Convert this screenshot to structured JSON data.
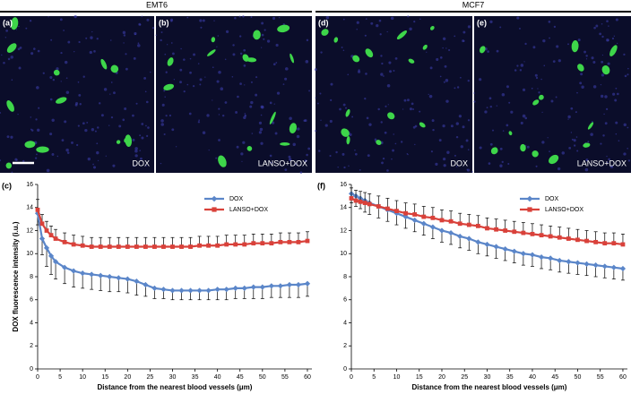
{
  "header": {
    "groups": [
      "EMT6",
      "MCF7"
    ]
  },
  "panels": [
    {
      "label": "(a)",
      "caption": "DOX"
    },
    {
      "label": "(b)",
      "caption": "LANSO+DOX"
    },
    {
      "label": "(d)",
      "caption": "DOX"
    },
    {
      "label": "(e)",
      "caption": "LANSO+DOX"
    }
  ],
  "chart_data": [
    {
      "type": "line",
      "panel_label": "(c)",
      "y_label": "DOX fluorescence intensity (i.u.)",
      "x_label": "Distance from the nearest blood vessels (μm)",
      "x": [
        0,
        1,
        2,
        3,
        4,
        6,
        8,
        10,
        12,
        14,
        16,
        18,
        20,
        22,
        24,
        26,
        28,
        30,
        32,
        34,
        36,
        38,
        40,
        42,
        44,
        46,
        48,
        50,
        52,
        54,
        56,
        58,
        60
      ],
      "xlim": [
        0,
        61
      ],
      "xticks": [
        0,
        5,
        10,
        15,
        20,
        25,
        30,
        35,
        40,
        45,
        50,
        55,
        60
      ],
      "ylim": [
        0,
        16
      ],
      "yticks": [
        0,
        2,
        4,
        6,
        8,
        10,
        12,
        14,
        16
      ],
      "legend": "upper right",
      "series": [
        {
          "name": "DOX",
          "color": "#5b86c9",
          "marker": "diamond",
          "error_direction": "down",
          "values": [
            13.5,
            11.3,
            10.5,
            9.8,
            9.3,
            8.8,
            8.5,
            8.3,
            8.2,
            8.1,
            8.0,
            7.9,
            7.8,
            7.6,
            7.3,
            7.0,
            6.9,
            6.8,
            6.8,
            6.8,
            6.8,
            6.8,
            6.9,
            6.9,
            7.0,
            7.0,
            7.1,
            7.1,
            7.2,
            7.2,
            7.3,
            7.3,
            7.4
          ],
          "errors": [
            1.0,
            1.4,
            1.6,
            1.6,
            1.5,
            1.4,
            1.4,
            1.3,
            1.3,
            1.3,
            1.3,
            1.2,
            1.2,
            1.2,
            1.0,
            0.9,
            0.8,
            0.8,
            0.8,
            0.8,
            0.8,
            0.8,
            0.9,
            0.9,
            0.9,
            0.9,
            1.0,
            1.0,
            1.0,
            1.0,
            1.1,
            1.1,
            1.1
          ]
        },
        {
          "name": "LANSO+DOX",
          "color": "#d9413a",
          "marker": "square",
          "error_direction": "up",
          "values": [
            13.8,
            12.6,
            12.0,
            11.6,
            11.3,
            11.0,
            10.8,
            10.7,
            10.6,
            10.6,
            10.6,
            10.6,
            10.6,
            10.6,
            10.6,
            10.6,
            10.6,
            10.6,
            10.6,
            10.6,
            10.7,
            10.7,
            10.7,
            10.8,
            10.8,
            10.8,
            10.9,
            10.9,
            10.9,
            11.0,
            11.0,
            11.0,
            11.1
          ],
          "errors": [
            0.9,
            0.8,
            0.8,
            0.8,
            0.8,
            0.8,
            0.8,
            0.8,
            0.8,
            0.8,
            0.8,
            0.8,
            0.8,
            0.8,
            0.8,
            0.8,
            0.8,
            0.8,
            0.8,
            0.8,
            0.8,
            0.8,
            0.8,
            0.8,
            0.8,
            0.8,
            0.8,
            0.8,
            0.8,
            0.8,
            0.8,
            0.8,
            0.8
          ]
        }
      ]
    },
    {
      "type": "line",
      "panel_label": "(f)",
      "x_label": "Distance from the nearest blood vessels (μm)",
      "x": [
        0,
        1,
        2,
        3,
        4,
        6,
        8,
        10,
        12,
        14,
        16,
        18,
        20,
        22,
        24,
        26,
        28,
        30,
        32,
        34,
        36,
        38,
        40,
        42,
        44,
        46,
        48,
        50,
        52,
        54,
        56,
        58,
        60
      ],
      "xlim": [
        0,
        61
      ],
      "xticks": [
        0,
        5,
        10,
        15,
        20,
        25,
        30,
        35,
        40,
        45,
        50,
        55,
        60
      ],
      "ylim": [
        0,
        16
      ],
      "yticks": [
        0,
        2,
        4,
        6,
        8,
        10,
        12,
        14,
        16
      ],
      "legend": "upper right",
      "series": [
        {
          "name": "DOX",
          "color": "#5b86c9",
          "marker": "diamond",
          "error_direction": "down",
          "values": [
            15.2,
            15.0,
            14.8,
            14.6,
            14.4,
            14.1,
            13.8,
            13.5,
            13.2,
            12.9,
            12.6,
            12.3,
            12.0,
            11.8,
            11.5,
            11.3,
            11.0,
            10.8,
            10.6,
            10.4,
            10.2,
            10.0,
            9.9,
            9.7,
            9.6,
            9.4,
            9.3,
            9.2,
            9.1,
            9.0,
            8.9,
            8.8,
            8.7
          ],
          "errors": [
            0.8,
            0.9,
            0.9,
            1.0,
            1.0,
            1.0,
            1.0,
            1.0,
            1.0,
            1.0,
            1.0,
            1.0,
            1.0,
            1.0,
            1.0,
            1.0,
            1.0,
            1.0,
            1.0,
            1.0,
            1.0,
            1.0,
            1.0,
            1.0,
            1.0,
            1.0,
            1.0,
            1.0,
            1.0,
            1.0,
            1.0,
            1.0,
            1.0
          ]
        },
        {
          "name": "LANSO+DOX",
          "color": "#d9413a",
          "marker": "square",
          "error_direction": "up",
          "values": [
            14.8,
            14.6,
            14.5,
            14.4,
            14.3,
            14.1,
            13.9,
            13.7,
            13.5,
            13.4,
            13.2,
            13.1,
            12.9,
            12.8,
            12.6,
            12.5,
            12.4,
            12.2,
            12.1,
            12.0,
            11.9,
            11.8,
            11.7,
            11.6,
            11.5,
            11.4,
            11.3,
            11.2,
            11.1,
            11.0,
            10.9,
            10.9,
            10.8
          ],
          "errors": [
            0.9,
            0.9,
            0.9,
            0.9,
            0.9,
            0.9,
            0.9,
            0.9,
            0.9,
            0.9,
            0.9,
            0.9,
            0.9,
            0.9,
            0.9,
            0.9,
            0.9,
            0.9,
            0.9,
            0.9,
            0.9,
            0.9,
            0.9,
            0.9,
            0.9,
            0.9,
            0.9,
            0.9,
            0.9,
            0.9,
            0.9,
            0.9,
            0.9
          ]
        }
      ]
    }
  ]
}
